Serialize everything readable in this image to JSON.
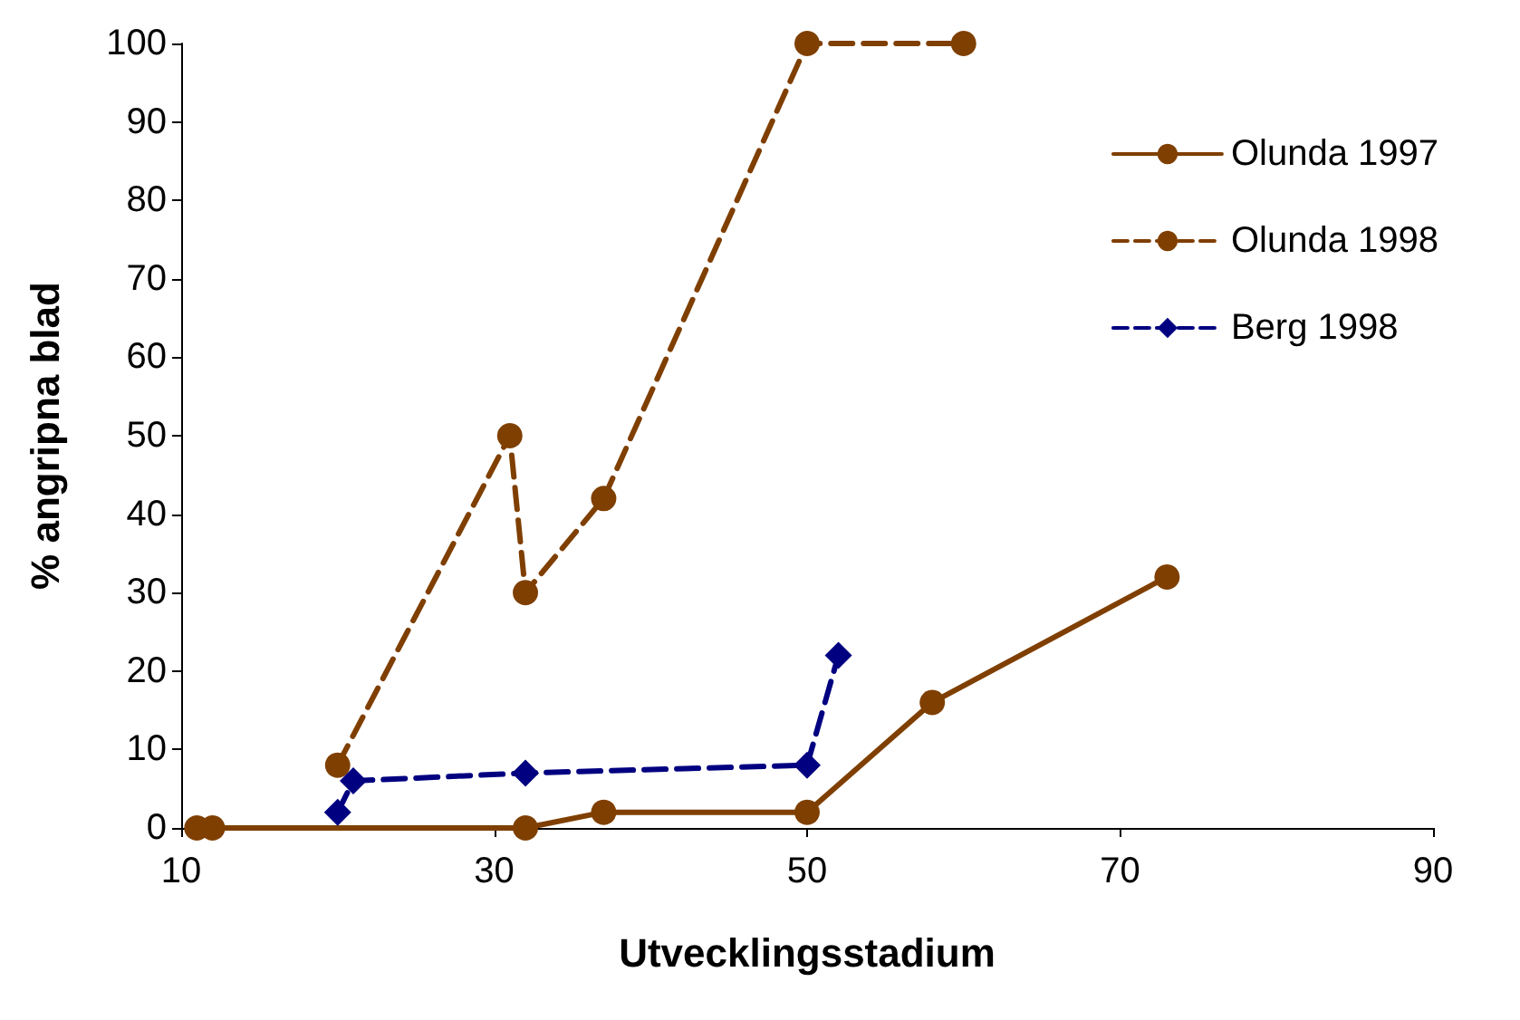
{
  "chart_data": {
    "type": "line",
    "xlabel": "Utvecklingsstadium",
    "ylabel": "% angripna blad",
    "xlim": [
      10,
      90
    ],
    "xticks": [
      10,
      30,
      50,
      70,
      90
    ],
    "ylim": [
      0,
      100
    ],
    "yticks": [
      0,
      10,
      20,
      30,
      40,
      50,
      60,
      70,
      80,
      90,
      100
    ],
    "grid": false,
    "legend": "top right",
    "series": [
      {
        "name": "Olunda 1997",
        "color": "#7f3f00",
        "line_style": "solid",
        "marker": "circle",
        "x": [
          11,
          12,
          32,
          37,
          50,
          58,
          73
        ],
        "values": [
          0,
          0,
          0,
          2,
          2,
          16,
          32
        ]
      },
      {
        "name": "Olunda 1998",
        "color": "#7f3f00",
        "line_style": "dashed",
        "marker": "emptyCircle",
        "x": [
          20,
          31,
          32,
          37,
          50,
          60
        ],
        "values": [
          8,
          50,
          30,
          42,
          100,
          100
        ]
      },
      {
        "name": "Berg 1998",
        "color": "#000080",
        "line_style": "dashed",
        "marker": "diamond",
        "x": [
          20,
          21,
          32,
          50,
          52
        ],
        "values": [
          2,
          6,
          7,
          8,
          22
        ]
      }
    ]
  }
}
